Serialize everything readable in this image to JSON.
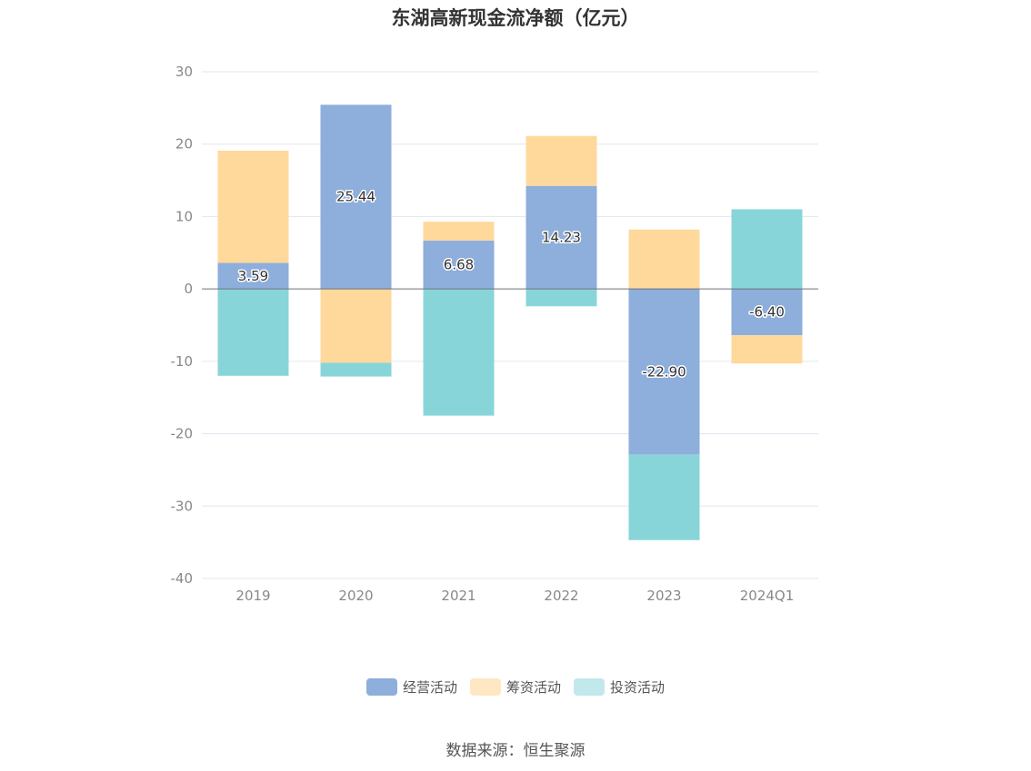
{
  "title": "东湖高新现金流净额（亿元）",
  "source": "数据来源：恒生聚源",
  "chart_data": {
    "type": "bar",
    "stacked": true,
    "title": "东湖高新现金流净额（亿元）",
    "categories": [
      "2019",
      "2020",
      "2021",
      "2022",
      "2023",
      "2024Q1"
    ],
    "ylim": [
      -40,
      30
    ],
    "yticks": [
      "30",
      "20",
      "10",
      "0",
      "-10",
      "-20",
      "-30",
      "-40"
    ],
    "grid": true,
    "legend_position": "bottom",
    "series": [
      {
        "name": "经营活动",
        "color": "#8eaedb",
        "values": [
          3.59,
          25.44,
          6.68,
          14.23,
          -22.9,
          -6.4
        ],
        "labels": [
          "3.59",
          "25.44",
          "6.68",
          "14.23",
          "-22.90",
          "-6.40"
        ]
      },
      {
        "name": "筹资活动",
        "color": "#ffd89c",
        "values": [
          15.5,
          -10.2,
          2.6,
          6.9,
          8.2,
          -3.9
        ]
      },
      {
        "name": "投资活动",
        "color": "#88d5d9",
        "values": [
          -12.0,
          -1.9,
          -17.5,
          -2.4,
          -11.8,
          11.0
        ]
      }
    ],
    "legend_colors": [
      "#8eaedb",
      "#ffe7c4",
      "#c1e9ec"
    ]
  }
}
